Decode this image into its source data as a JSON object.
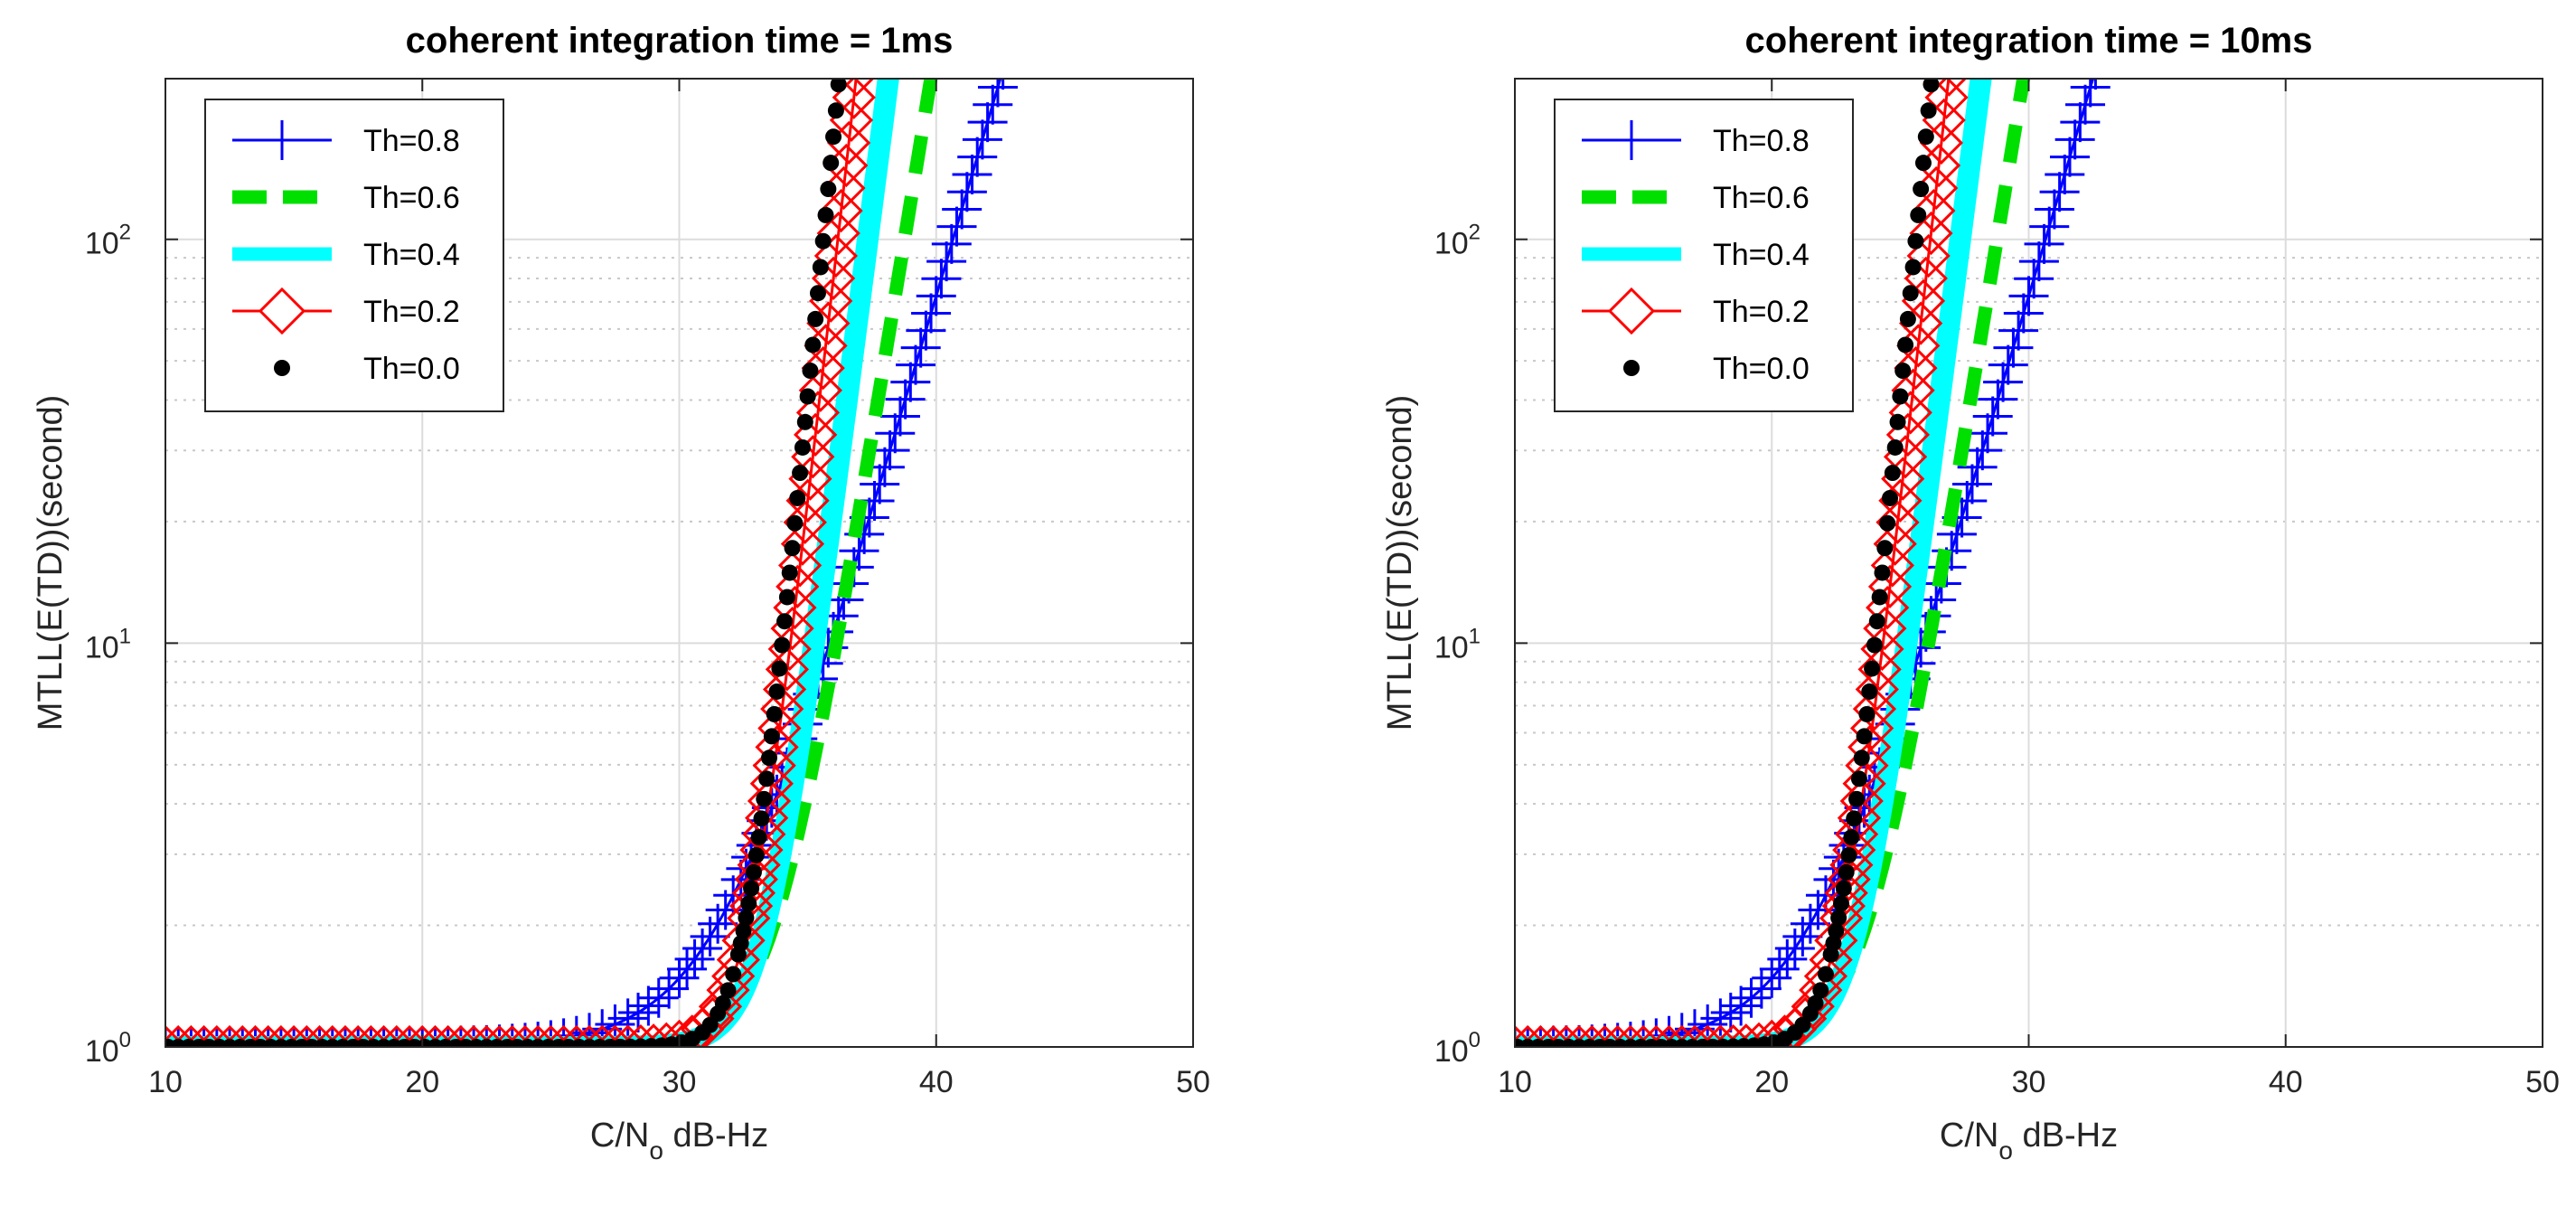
{
  "chart_data": [
    {
      "type": "line",
      "title": "coherent integration time = 1ms",
      "xlabel": "C/N",
      "xlabel_sub": "o",
      "xlabel_unit": " dB-Hz",
      "ylabel": "MTLL(E(TD))(second)",
      "xlim": [
        10,
        50
      ],
      "ylim": [
        1,
        250
      ],
      "yscale": "log",
      "xticks": [
        "10",
        "20",
        "30",
        "40",
        "50"
      ],
      "yticks": [
        {
          "base": "10",
          "exp": "0"
        },
        {
          "base": "10",
          "exp": "1"
        },
        {
          "base": "10",
          "exp": "2"
        }
      ],
      "series": [
        {
          "name": "Th=0.8",
          "color": "#0000ff",
          "marker": "plus",
          "line": "solid",
          "x_end": 43.0,
          "k": 0.5,
          "a": 3.2
        },
        {
          "name": "Th=0.6",
          "color": "#00e000",
          "marker": "none",
          "line": "dash",
          "x_end": 40.0,
          "k": 0.9,
          "a": 3.0
        },
        {
          "name": "Th=0.4",
          "color": "#00ffff",
          "marker": "none",
          "line": "thick",
          "x_end": 38.3,
          "k": 1.15,
          "a": 3.0
        },
        {
          "name": "Th=0.2",
          "color": "#ff0000",
          "marker": "diamond",
          "line": "solid",
          "x_end": 37.0,
          "k": 1.3,
          "a": 2.9
        },
        {
          "name": "Th=0.0",
          "color": "#000000",
          "marker": "dot",
          "line": "none",
          "x_end": 36.3,
          "k": 1.5,
          "a": 2.8
        }
      ]
    },
    {
      "type": "line",
      "title": "coherent integration time = 10ms",
      "xlabel": "C/N",
      "xlabel_sub": "o",
      "xlabel_unit": " dB-Hz",
      "ylabel": "MTLL(E(TD))(second)",
      "xlim": [
        10,
        50
      ],
      "ylim": [
        1,
        250
      ],
      "yscale": "log",
      "xticks": [
        "10",
        "20",
        "30",
        "40",
        "50"
      ],
      "yticks": [
        {
          "base": "10",
          "exp": "0"
        },
        {
          "base": "10",
          "exp": "1"
        },
        {
          "base": "10",
          "exp": "2"
        }
      ],
      "series": [
        {
          "name": "Th=0.8",
          "color": "#0000ff",
          "marker": "plus",
          "line": "solid",
          "x_end": 33.0,
          "k": 0.5,
          "a": 3.2
        },
        {
          "name": "Th=0.6",
          "color": "#00e000",
          "marker": "none",
          "line": "dash",
          "x_end": 30.0,
          "k": 0.9,
          "a": 3.0
        },
        {
          "name": "Th=0.4",
          "color": "#00ffff",
          "marker": "none",
          "line": "thick",
          "x_end": 28.3,
          "k": 1.15,
          "a": 3.0
        },
        {
          "name": "Th=0.2",
          "color": "#ff0000",
          "marker": "diamond",
          "line": "solid",
          "x_end": 27.0,
          "k": 1.3,
          "a": 2.9
        },
        {
          "name": "Th=0.0",
          "color": "#000000",
          "marker": "dot",
          "line": "none",
          "x_end": 26.3,
          "k": 1.5,
          "a": 2.8
        }
      ]
    }
  ]
}
